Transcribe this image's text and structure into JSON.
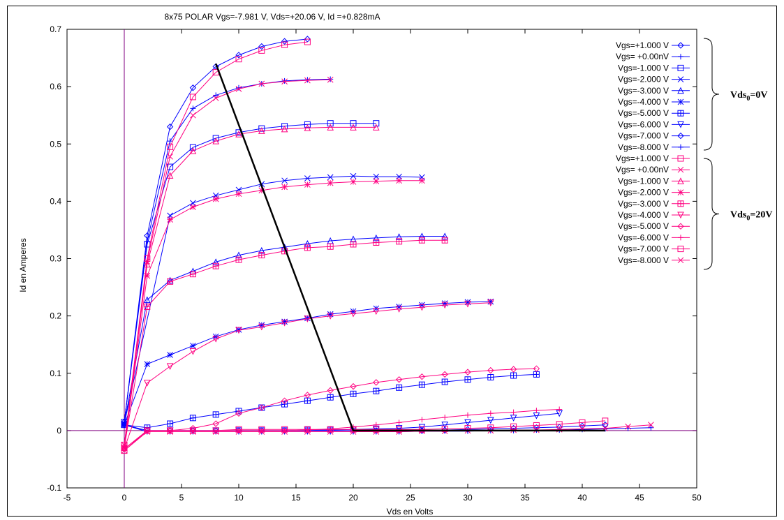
{
  "chart_data": {
    "type": "line",
    "title": "8x75   POLAR Vgs=-7.981 V, Vds=+20.06 V, Id =+0.828mA",
    "xlabel": "Vds en Volts",
    "ylabel": "Id  en Amperes",
    "xlim": [
      -5,
      50
    ],
    "ylim": [
      -0.1,
      0.7
    ],
    "x_ticks": [
      "-5",
      "0",
      "5",
      "10",
      "15",
      "20",
      "25",
      "30",
      "35",
      "40",
      "45",
      "50"
    ],
    "y_ticks": [
      "-0.1",
      "0",
      "0.1",
      "0.2",
      "0.3",
      "0.4",
      "0.5",
      "0.6",
      "0.7"
    ],
    "grid": false,
    "legend_position": "top-right",
    "group_labels": [
      {
        "main": "Vds",
        "sub": "0",
        "suffix": "=0V"
      },
      {
        "main": "Vds",
        "sub": "0",
        "suffix": "=20V"
      }
    ],
    "load_line": {
      "color": "#000000",
      "points": [
        [
          8,
          0.64
        ],
        [
          20,
          0.0
        ],
        [
          42,
          0.0
        ]
      ]
    },
    "series": [
      {
        "name": "Vgs=+1.000 V",
        "color": "#0000ff",
        "marker": "diamond",
        "x": [
          0,
          2,
          4,
          6,
          8,
          10,
          12,
          14,
          16
        ],
        "y": [
          0.015,
          0.34,
          0.53,
          0.598,
          0.635,
          0.655,
          0.67,
          0.679,
          0.683
        ]
      },
      {
        "name": "Vgs= +0.00nV",
        "color": "#0000ff",
        "marker": "plus",
        "x": [
          0,
          2,
          4,
          6,
          8,
          10,
          12,
          14,
          16,
          18
        ],
        "y": [
          0.015,
          0.33,
          0.505,
          0.562,
          0.585,
          0.598,
          0.605,
          0.61,
          0.612,
          0.613
        ]
      },
      {
        "name": "Vgs=-1.000 V",
        "color": "#0000ff",
        "marker": "square",
        "x": [
          0,
          2,
          4,
          6,
          8,
          10,
          12,
          14,
          16,
          18,
          20,
          22
        ],
        "y": [
          0.015,
          0.325,
          0.46,
          0.494,
          0.51,
          0.52,
          0.527,
          0.531,
          0.534,
          0.536,
          0.536,
          0.536
        ]
      },
      {
        "name": "Vgs=-2.000 V",
        "color": "#0000ff",
        "marker": "x",
        "x": [
          0,
          4,
          6,
          8,
          10,
          12,
          14,
          16,
          18,
          20,
          22,
          24,
          26
        ],
        "y": [
          0.012,
          0.375,
          0.397,
          0.41,
          0.42,
          0.43,
          0.436,
          0.44,
          0.442,
          0.444,
          0.443,
          0.443,
          0.442
        ]
      },
      {
        "name": "Vgs=-3.000 V",
        "color": "#0000ff",
        "marker": "triangle-up",
        "x": [
          0,
          2,
          4,
          6,
          8,
          10,
          12,
          14,
          16,
          18,
          20,
          22,
          24,
          26,
          28
        ],
        "y": [
          0.012,
          0.228,
          0.262,
          0.278,
          0.294,
          0.306,
          0.314,
          0.32,
          0.326,
          0.331,
          0.334,
          0.336,
          0.338,
          0.339,
          0.339
        ]
      },
      {
        "name": "Vgs=-4.000 V",
        "color": "#0000ff",
        "marker": "star",
        "x": [
          0,
          2,
          4,
          6,
          8,
          10,
          12,
          14,
          16,
          18,
          20,
          22,
          24,
          26,
          28,
          30,
          32
        ],
        "y": [
          0.01,
          0.116,
          0.132,
          0.148,
          0.164,
          0.176,
          0.184,
          0.19,
          0.196,
          0.203,
          0.208,
          0.213,
          0.216,
          0.219,
          0.222,
          0.224,
          0.225
        ]
      },
      {
        "name": "Vgs=-5.000 V",
        "color": "#0000ff",
        "marker": "square-plus",
        "x": [
          0,
          2,
          4,
          6,
          8,
          10,
          12,
          14,
          16,
          18,
          20,
          22,
          24,
          26,
          28,
          30,
          32,
          34,
          36
        ],
        "y": [
          0.01,
          0.005,
          0.012,
          0.022,
          0.028,
          0.034,
          0.04,
          0.046,
          0.052,
          0.058,
          0.064,
          0.069,
          0.075,
          0.08,
          0.085,
          0.089,
          0.093,
          0.096,
          0.098
        ]
      },
      {
        "name": "Vgs=-6.000 V",
        "color": "#0000ff",
        "marker": "triangle-down",
        "x": [
          0,
          2,
          4,
          6,
          8,
          10,
          12,
          14,
          16,
          18,
          20,
          22,
          24,
          26,
          28,
          30,
          32,
          34,
          36,
          38
        ],
        "y": [
          0.01,
          0.0,
          0.0,
          0.0,
          0.0,
          0.0,
          0.0,
          0.0,
          0.001,
          0.001,
          0.002,
          0.003,
          0.004,
          0.006,
          0.01,
          0.014,
          0.018,
          0.022,
          0.026,
          0.03
        ]
      },
      {
        "name": "Vgs=-7.000 V",
        "color": "#0000ff",
        "marker": "diamond",
        "x": [
          0,
          2,
          4,
          6,
          8,
          10,
          12,
          14,
          16,
          18,
          20,
          22,
          24,
          26,
          28,
          30,
          32,
          34,
          36,
          38,
          40,
          42
        ],
        "y": [
          0.01,
          0.0,
          0.0,
          0.0,
          0.0,
          0.0,
          0.0,
          0.0,
          0.0,
          0.0,
          0.0,
          0.0,
          0.0,
          0.0,
          0.001,
          0.002,
          0.003,
          0.004,
          0.005,
          0.006,
          0.008,
          0.01
        ]
      },
      {
        "name": "Vgs=-8.000 V",
        "color": "#0000ff",
        "marker": "plus",
        "x": [
          0,
          2,
          4,
          6,
          8,
          10,
          12,
          14,
          16,
          18,
          20,
          22,
          24,
          26,
          28,
          30,
          32,
          34,
          36,
          38,
          40,
          42,
          44,
          46
        ],
        "y": [
          0.01,
          -0.002,
          -0.002,
          -0.002,
          -0.002,
          -0.002,
          -0.002,
          -0.002,
          -0.002,
          -0.002,
          -0.002,
          -0.002,
          -0.002,
          -0.001,
          -0.001,
          -0.001,
          0.0,
          0.0,
          0.001,
          0.001,
          0.002,
          0.003,
          0.004,
          0.005
        ]
      },
      {
        "name": "Vgs=+1.000 V",
        "color": "#ff0080",
        "marker": "square",
        "x": [
          0,
          2,
          4,
          6,
          8,
          10,
          12,
          14,
          16
        ],
        "y": [
          -0.025,
          0.3,
          0.495,
          0.582,
          0.625,
          0.648,
          0.663,
          0.673,
          0.678
        ]
      },
      {
        "name": "Vgs= +0.00nV",
        "color": "#ff0080",
        "marker": "x",
        "x": [
          0,
          2,
          4,
          6,
          8,
          10,
          12,
          14,
          16,
          18
        ],
        "y": [
          -0.025,
          0.295,
          0.478,
          0.55,
          0.58,
          0.596,
          0.605,
          0.609,
          0.611,
          0.612
        ]
      },
      {
        "name": "Vgs=-1.000 V",
        "color": "#ff0080",
        "marker": "triangle-up",
        "x": [
          0,
          2,
          4,
          6,
          8,
          10,
          12,
          14,
          16,
          18,
          20,
          22
        ],
        "y": [
          -0.03,
          0.29,
          0.445,
          0.488,
          0.505,
          0.517,
          0.523,
          0.526,
          0.528,
          0.529,
          0.529,
          0.529
        ]
      },
      {
        "name": "Vgs=-2.000 V",
        "color": "#ff0080",
        "marker": "star",
        "x": [
          0,
          2,
          4,
          6,
          8,
          10,
          12,
          14,
          16,
          18,
          20,
          22,
          24,
          26
        ],
        "y": [
          -0.03,
          0.27,
          0.368,
          0.39,
          0.404,
          0.413,
          0.419,
          0.425,
          0.429,
          0.432,
          0.434,
          0.435,
          0.436,
          0.436
        ]
      },
      {
        "name": "Vgs=-3.000 V",
        "color": "#ff0080",
        "marker": "square-plus",
        "x": [
          0,
          2,
          4,
          6,
          8,
          10,
          12,
          14,
          16,
          18,
          20,
          22,
          24,
          26,
          28
        ],
        "y": [
          -0.03,
          0.216,
          0.26,
          0.273,
          0.287,
          0.298,
          0.306,
          0.313,
          0.319,
          0.321,
          0.325,
          0.328,
          0.33,
          0.332,
          0.332
        ]
      },
      {
        "name": "Vgs=-4.000 V",
        "color": "#ff0080",
        "marker": "triangle-down",
        "x": [
          0,
          2,
          4,
          6,
          8,
          10,
          12,
          14,
          16,
          18,
          20,
          22,
          24,
          26,
          28,
          30,
          32
        ],
        "y": [
          -0.032,
          0.083,
          0.112,
          0.138,
          0.16,
          0.175,
          0.181,
          0.188,
          0.195,
          0.2,
          0.204,
          0.208,
          0.212,
          0.215,
          0.219,
          0.221,
          0.223
        ]
      },
      {
        "name": "Vgs=-5.000 V",
        "color": "#ff0080",
        "marker": "diamond",
        "x": [
          0,
          2,
          4,
          6,
          8,
          10,
          12,
          14,
          16,
          18,
          20,
          22,
          24,
          26,
          28,
          30,
          32,
          34,
          36
        ],
        "y": [
          -0.032,
          0.0,
          0.0,
          0.004,
          0.012,
          0.03,
          0.04,
          0.052,
          0.062,
          0.07,
          0.077,
          0.084,
          0.089,
          0.094,
          0.098,
          0.102,
          0.105,
          0.107,
          0.108
        ]
      },
      {
        "name": "Vgs=-6.000 V",
        "color": "#ff0080",
        "marker": "plus",
        "x": [
          0,
          2,
          4,
          6,
          8,
          10,
          12,
          14,
          16,
          18,
          20,
          22,
          24,
          26,
          28,
          30,
          32,
          34,
          36,
          38
        ],
        "y": [
          -0.032,
          0.0,
          0.0,
          0.0,
          0.0,
          0.0,
          0.0,
          0.0,
          0.001,
          0.003,
          0.006,
          0.01,
          0.014,
          0.019,
          0.023,
          0.027,
          0.03,
          0.032,
          0.035,
          0.037
        ]
      },
      {
        "name": "Vgs=-7.000 V",
        "color": "#ff0080",
        "marker": "square",
        "x": [
          0,
          2,
          4,
          6,
          8,
          10,
          12,
          14,
          16,
          18,
          20,
          22,
          24,
          26,
          28,
          30,
          32,
          34,
          36,
          38,
          40,
          42
        ],
        "y": [
          -0.035,
          0.0,
          0.0,
          0.0,
          0.0,
          0.002,
          0.002,
          0.002,
          0.002,
          0.002,
          0.002,
          0.002,
          0.002,
          0.002,
          0.003,
          0.004,
          0.005,
          0.007,
          0.009,
          0.011,
          0.014,
          0.017
        ]
      },
      {
        "name": "Vgs=-8.000 V",
        "color": "#ff0080",
        "marker": "x",
        "x": [
          0,
          2,
          4,
          6,
          8,
          10,
          12,
          14,
          16,
          18,
          20,
          22,
          24,
          26,
          28,
          30,
          32,
          34,
          36,
          38,
          40,
          42,
          44,
          46
        ],
        "y": [
          -0.035,
          -0.002,
          -0.002,
          -0.002,
          -0.002,
          -0.002,
          -0.002,
          -0.002,
          -0.002,
          -0.002,
          -0.002,
          -0.002,
          -0.002,
          -0.001,
          -0.001,
          0.0,
          0.0,
          0.001,
          0.001,
          0.002,
          0.003,
          0.004,
          0.007,
          0.01
        ]
      }
    ]
  }
}
